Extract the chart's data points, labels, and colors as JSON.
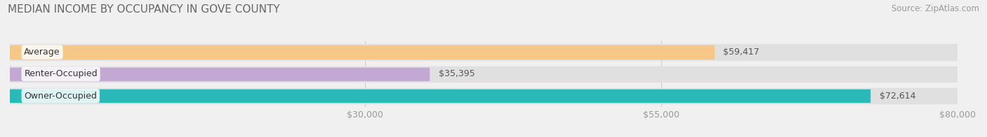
{
  "title": "MEDIAN INCOME BY OCCUPANCY IN GOVE COUNTY",
  "source": "Source: ZipAtlas.com",
  "categories": [
    "Owner-Occupied",
    "Renter-Occupied",
    "Average"
  ],
  "values": [
    72614,
    35395,
    59417
  ],
  "labels": [
    "$72,614",
    "$35,395",
    "$59,417"
  ],
  "bar_colors": [
    "#2ab8b8",
    "#c4a8d4",
    "#f5c887"
  ],
  "xlim": [
    0,
    80000
  ],
  "xticks": [
    30000,
    55000,
    80000
  ],
  "xticklabels": [
    "$30,000",
    "$55,000",
    "$80,000"
  ],
  "background_color": "#f0f0f0",
  "bar_bg_color": "#e0e0e0",
  "title_fontsize": 11,
  "source_fontsize": 8.5,
  "label_fontsize": 9,
  "category_fontsize": 9,
  "tick_fontsize": 9
}
